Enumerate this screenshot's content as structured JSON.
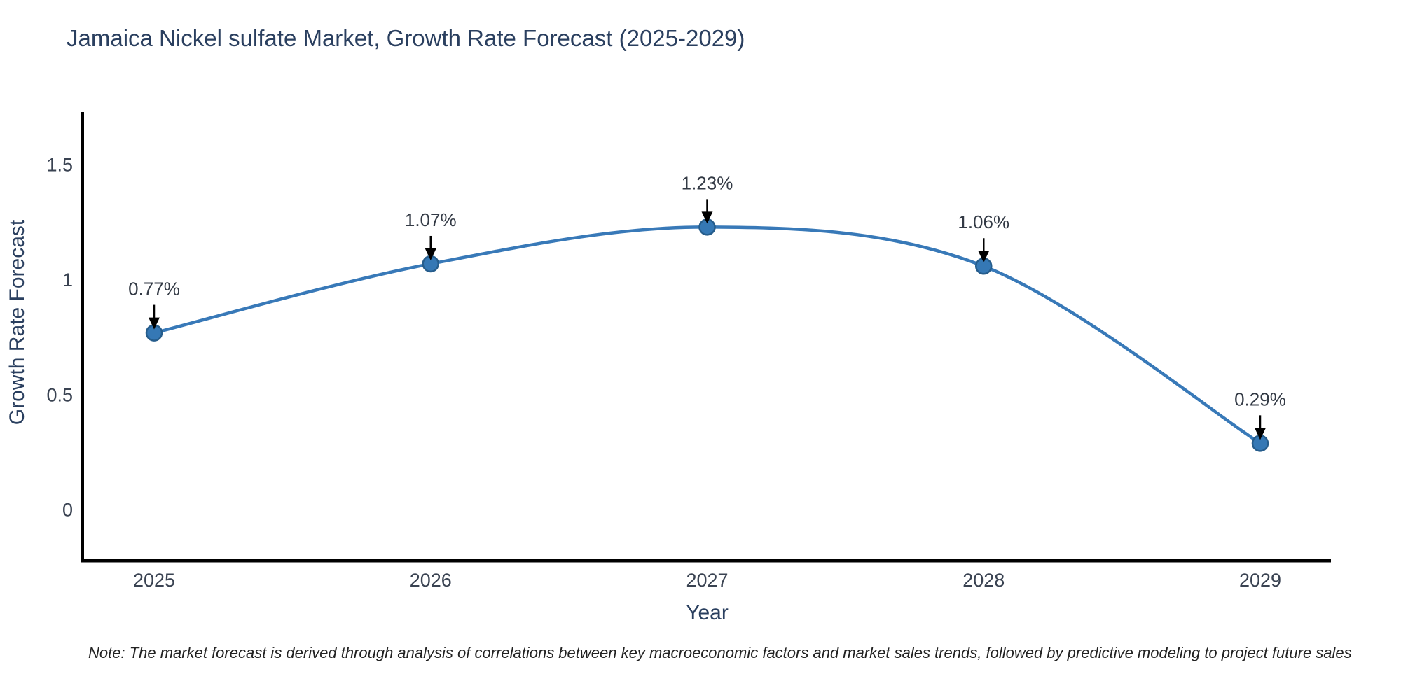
{
  "chart_data": {
    "type": "line",
    "title": "Jamaica Nickel sulfate Market, Growth Rate Forecast (2025-2029)",
    "xlabel": "Year",
    "ylabel": "Growth Rate Forecast",
    "x": [
      "2025",
      "2026",
      "2027",
      "2028",
      "2029"
    ],
    "values": [
      0.77,
      1.07,
      1.23,
      1.06,
      0.29
    ],
    "point_labels": [
      "0.77%",
      "1.07%",
      "1.23%",
      "1.06%",
      "0.29%"
    ],
    "ytick_values": [
      0,
      0.5,
      1,
      1.5
    ],
    "ytick_labels": [
      "0",
      "0.5",
      "1",
      "1.5"
    ],
    "ylim": [
      -0.22,
      1.73
    ],
    "line_shape": "spline",
    "grid": false,
    "legend": "none",
    "note": "Note: The market forecast is derived through analysis of correlations between key macroeconomic factors and market sales trends, followed by predictive modeling to project future sales",
    "colors": {
      "line": "#3879b8",
      "marker_fill": "#3578b5",
      "marker_edge": "#265d8c",
      "axis_line": "#000000",
      "title_text": "#2a3f5f",
      "tick_text": "#3a4352",
      "axis_label_text": "#2a3f5f",
      "annotation_text": "#333a45",
      "arrow": "#000000",
      "note_text": "#222222",
      "background": "#ffffff"
    }
  }
}
